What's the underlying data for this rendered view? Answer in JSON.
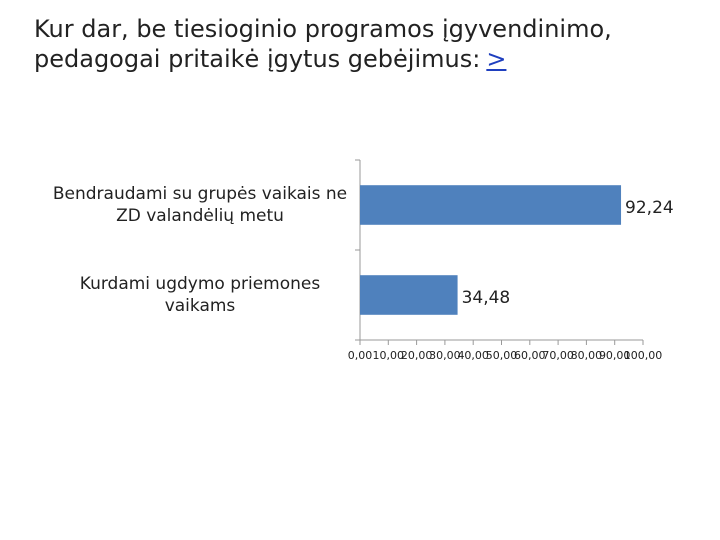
{
  "chart_data": {
    "type": "bar",
    "orientation": "horizontal",
    "title": "Kur dar, be tiesioginio programos įgyvendinimo, pedagogai pritaikė įgytus gebėjimus:",
    "title_link": ">",
    "categories": [
      "Bendraudami su grupės vaikais ne ZD valandėlių metu",
      "Kurdami ugdymo priemones vaikams"
    ],
    "values": [
      92.24,
      34.48
    ],
    "value_labels": [
      "92,24",
      "34,48"
    ],
    "color": "#4f81bd",
    "xlim": [
      0,
      100
    ],
    "xticks": [
      {
        "value": 0,
        "label": "0,00"
      },
      {
        "value": 10,
        "label": "10,00"
      },
      {
        "value": 20,
        "label": "20,00"
      },
      {
        "value": 30,
        "label": "30,00"
      },
      {
        "value": 40,
        "label": "40,00"
      },
      {
        "value": 50,
        "label": "50,00"
      },
      {
        "value": 60,
        "label": "60,00"
      },
      {
        "value": 70,
        "label": "70,00"
      },
      {
        "value": 80,
        "label": "80,00"
      },
      {
        "value": 90,
        "label": "90,00"
      },
      {
        "value": 100,
        "label": "100,00"
      }
    ],
    "grid": false
  }
}
